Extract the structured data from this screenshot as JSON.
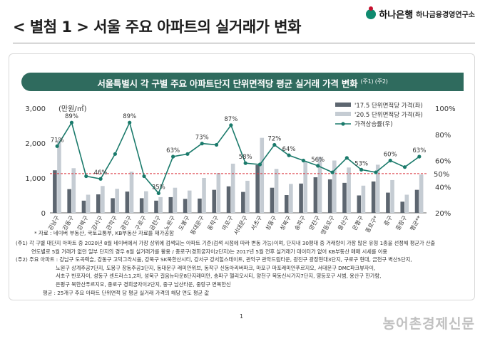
{
  "header": {
    "title": "< 별첨 1 > 서울 주요 아파트의 실거래가 변화",
    "brand_name": "하나은행",
    "brand_institute": "하나금융경영연구소"
  },
  "banner": {
    "text": "서울특별시 각 구별 주요 아파트단지 단위면적당 평균 실거래 가격 변화",
    "notes": "(주1) (주2)"
  },
  "chart_data": {
    "type": "bar",
    "unit_label": "(만원/㎡)",
    "categories": [
      "강남구",
      "강동구",
      "강북구",
      "강서구",
      "관악구",
      "광진구",
      "구로구",
      "금천구",
      "노원구",
      "도봉구",
      "동대문구",
      "동작구",
      "마포구",
      "서대문구",
      "서초구",
      "성동구",
      "성북구",
      "송파구",
      "양천구",
      "영등포구",
      "용산구",
      "은평구",
      "종로구*",
      "중구",
      "중랑구",
      "평균**"
    ],
    "series": [
      {
        "name": "'17.5 단위면적당 가격(좌)",
        "axis": "left",
        "color": "#5d6670",
        "values": [
          1220,
          680,
          350,
          530,
          420,
          610,
          420,
          350,
          450,
          400,
          410,
          660,
          760,
          600,
          1370,
          720,
          510,
          840,
          1020,
          960,
          860,
          500,
          900,
          580,
          320,
          660
        ]
      },
      {
        "name": "'20.5 단위면적당 가격(좌)",
        "axis": "left",
        "color": "#c5ccd3",
        "values": [
          2080,
          1280,
          520,
          770,
          690,
          1180,
          620,
          450,
          720,
          640,
          1000,
          1140,
          1410,
          920,
          2150,
          1260,
          830,
          1470,
          1600,
          1500,
          1300,
          780,
          1380,
          940,
          520,
          1100
        ]
      },
      {
        "name": "가격상승률(우)",
        "axis": "right",
        "color": "#1a7a6b",
        "values": [
          71,
          89,
          48,
          46,
          65,
          89,
          48,
          35,
          63,
          65,
          73,
          72,
          87,
          58,
          57,
          72,
          64,
          60,
          56,
          51,
          62,
          53,
          51,
          60,
          55,
          63
        ]
      }
    ],
    "data_labels": [
      {
        "index": 0,
        "text": "71%"
      },
      {
        "index": 1,
        "text": "89%"
      },
      {
        "index": 3,
        "text": "46%"
      },
      {
        "index": 5,
        "text": "89%"
      },
      {
        "index": 7,
        "text": "35%"
      },
      {
        "index": 8,
        "text": "63%"
      },
      {
        "index": 10,
        "text": "73%"
      },
      {
        "index": 12,
        "text": "87%"
      },
      {
        "index": 13,
        "text": "58%"
      },
      {
        "index": 15,
        "text": "72%"
      },
      {
        "index": 16,
        "text": "64%"
      },
      {
        "index": 18,
        "text": "56%"
      },
      {
        "index": 21,
        "text": "53%"
      },
      {
        "index": 23,
        "text": "60%"
      },
      {
        "index": 25,
        "text": "63%"
      }
    ],
    "ylim_left": [
      0,
      3000
    ],
    "yticks_left": [
      "0",
      "1,000",
      "2,000",
      "3,000"
    ],
    "ylim_right": [
      20,
      100
    ],
    "yticks_right": [
      "20%",
      "40%",
      "60%",
      "80%",
      "100%"
    ],
    "reference_line": {
      "value": 50,
      "axis": "right",
      "label": "50%",
      "color": "#d9303b"
    },
    "legend_position": "top-right",
    "grid": false
  },
  "source": "* 자료 : 네이버 부동산, 국토교통부, KB부동산 자료를 재가공함",
  "notes": [
    "(주1) 각 구별 대단지 아파트 중 2020년 8월 네이버에서 가장 상위에 검색되는 아파트 기준(검색 시점에 따라 변동 가능)이며, 단지내 30평대 중 거래량이 가장 많은 유형 1종을 선정해 평균가 산출",
    "연도별로 5월 거래가 없던 일부 단지의 경우 6월 실거래가를 활용 / 종로구(경희궁자이2단지)는 2017년 5월 전후 실거래가 데이터가 없어 KB부동산 매매 시세를 이용",
    "(주2) 주요 아파트 : 강남구 도곡렉슬, 강동구 고덕그라시움, 강북구 SK북한산시티, 강서구 강서힐스테이트, 관악구 관악드림타운, 광진구 광장현대3단지, 구로구 현대, 금천구 벽산5단지,",
    "노원구 상계주공7단지, 도봉구 창동주공3단지, 동대문구 래미안위브, 동작구 신동아리버파크, 마포구 마포래미안푸르지오, 서대문구 DMC파크뷰자이,",
    "서초구 반포자이, 성동구 센트라스1,2차, 성북구 길음뉴타운8단지래미안, 송파구 헬리오시티, 양천구 목동신시가지7단지, 영등포구 시범, 용산구 한가람,",
    "은평구 북한산푸르지오, 종로구 경희궁자이2단지, 중구 남산타운, 중랑구 면목한신",
    "평균 : 25개구 주요 아파트 단위면적 당 평균 실거래 가격의 해당 연도 평균 값"
  ],
  "page_number": "1",
  "watermark": "농어촌경제신문"
}
